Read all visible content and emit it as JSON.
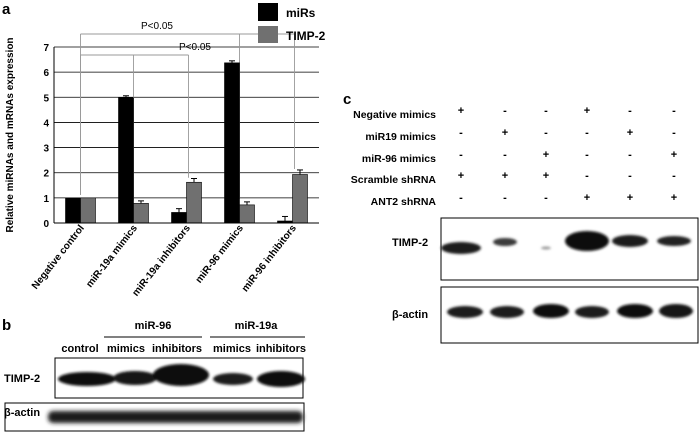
{
  "panels": {
    "a": "a",
    "b": "b",
    "c": "c"
  },
  "chart_data": {
    "type": "bar",
    "ylabel": "Relative miRNAs and mRNAs expression",
    "ylim": [
      0,
      7
    ],
    "yticks": [
      "0",
      "1",
      "2",
      "3",
      "4",
      "5",
      "6",
      "7"
    ],
    "grid": true,
    "legend": "top-right",
    "categories": [
      "Negative control",
      "miR-19a mimics",
      "miR-19a inhibitors",
      "miR-96 mimics",
      "miR-96 inhibitors"
    ],
    "series": [
      {
        "name": "miRs",
        "color": "#000000",
        "values": [
          1.0,
          4.98,
          0.42,
          6.37,
          0.08
        ],
        "errors": [
          0.0,
          0.08,
          0.15,
          0.08,
          0.18
        ]
      },
      {
        "name": "TIMP-2",
        "color": "#707070",
        "values": [
          1.0,
          0.78,
          1.62,
          0.72,
          1.93
        ],
        "errors": [
          0.0,
          0.1,
          0.15,
          0.12,
          0.18
        ]
      }
    ],
    "annotations": [
      {
        "text": "P<0.05",
        "from_category": 0,
        "to_categories": [
          3,
          4
        ]
      },
      {
        "text": "P<0.05",
        "from_category": 0,
        "to_categories": [
          1,
          2
        ]
      }
    ]
  },
  "panel_b": {
    "columns": [
      "control",
      "mimics",
      "inhibitors",
      "mimics",
      "inhibitors"
    ],
    "groups": [
      "miR-96",
      "miR-19a"
    ],
    "rows": [
      "TIMP-2",
      "β-actin"
    ]
  },
  "panel_c": {
    "conditions": [
      "Negative mimics",
      "miR19 mimics",
      "miR-96 mimics",
      "Scramble shRNA",
      "ANT2 shRNA"
    ],
    "matrix": [
      [
        "+",
        "-",
        "-",
        "+",
        "-",
        "-"
      ],
      [
        "-",
        "+",
        "-",
        "-",
        "+",
        "-"
      ],
      [
        "-",
        "-",
        "+",
        "-",
        "-",
        "+"
      ],
      [
        "+",
        "+",
        "+",
        "-",
        "-",
        "-"
      ],
      [
        "-",
        "-",
        "-",
        "+",
        "+",
        "+"
      ]
    ],
    "rows": [
      "TIMP-2",
      "β-actin"
    ]
  }
}
